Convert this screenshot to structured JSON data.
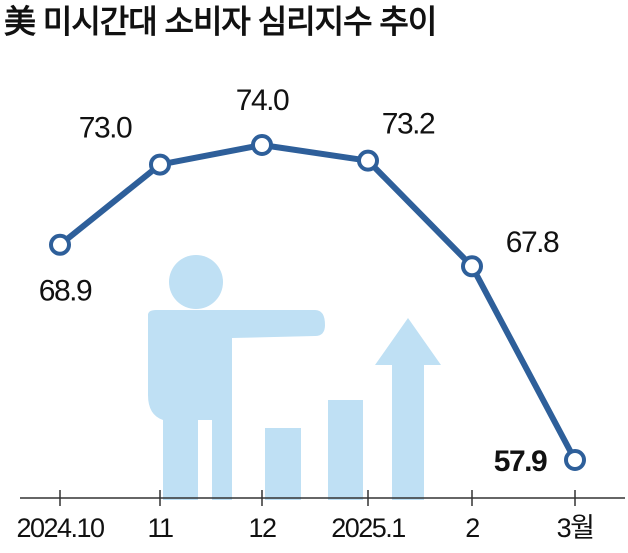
{
  "chart_data": {
    "type": "line",
    "title": "美 미시간대 소비자 심리지수 추이",
    "categories": [
      "2024.10",
      "11",
      "12",
      "2025.1",
      "2",
      "3월"
    ],
    "values": [
      68.9,
      73.0,
      74.0,
      73.2,
      67.8,
      57.9
    ],
    "value_labels": [
      "68.9",
      "73.0",
      "74.0",
      "73.2",
      "67.8",
      "57.9"
    ],
    "color": "#2e5f9a"
  }
}
